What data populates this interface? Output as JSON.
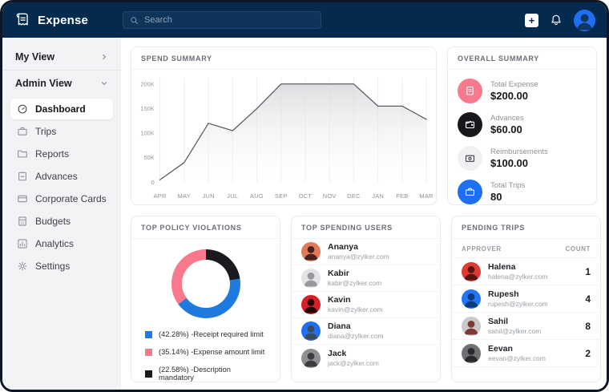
{
  "app": {
    "name": "Expense"
  },
  "topbar": {
    "search_placeholder": "Search"
  },
  "sidebar": {
    "sections": [
      {
        "label": "My View"
      },
      {
        "label": "Admin View"
      }
    ],
    "items": [
      {
        "label": "Dashboard",
        "active": true
      },
      {
        "label": "Trips"
      },
      {
        "label": "Reports"
      },
      {
        "label": "Advances"
      },
      {
        "label": "Corporate Cards"
      },
      {
        "label": "Budgets"
      },
      {
        "label": "Analytics"
      },
      {
        "label": "Settings"
      }
    ]
  },
  "spend_summary": {
    "title": "SPEND SUMMARY"
  },
  "overall_summary": {
    "title": "OVERALL SUMMARY",
    "metrics": [
      {
        "label": "Total Expense",
        "value": "$200.00",
        "icon": "receipt-icon",
        "color": "#f8798c",
        "fg": "#ffffff"
      },
      {
        "label": "Advances",
        "value": "$60.00",
        "icon": "wallet-icon",
        "color": "#17171c",
        "fg": "#ffffff"
      },
      {
        "label": "Reimbursements",
        "value": "$100.00",
        "icon": "cash-card-icon",
        "color": "#f1f1f3",
        "fg": "#3a3a40"
      },
      {
        "label": "Total Trips",
        "value": "80",
        "icon": "briefcase-icon",
        "color": "#1f6ff2",
        "fg": "#ffffff"
      }
    ]
  },
  "violations": {
    "title": "TOP POLICY VIOLATIONS",
    "legend": [
      {
        "text": "(42.28%) -Receipt required limit",
        "color": "#1f7ae0"
      },
      {
        "text": "(35.14%) -Expense amount limit",
        "color": "#f8798c"
      },
      {
        "text": "(22.58%) -Description mandatory",
        "color": "#1b1b1f"
      }
    ]
  },
  "top_spending_users": {
    "title": "TOP SPENDING USERS",
    "users": [
      {
        "name": "Ananya",
        "email": "ananya@zylker.com"
      },
      {
        "name": "Kabir",
        "email": "kabir@zylker.com"
      },
      {
        "name": "Kavin",
        "email": "kavin@zylker.com"
      },
      {
        "name": "Diana",
        "email": "diana@zylker.com"
      },
      {
        "name": "Jack",
        "email": "jack@zylker.com"
      }
    ]
  },
  "pending_trips": {
    "title": "PENDING TRIPS",
    "col_approver": "APPROVER",
    "col_count": "COUNT",
    "rows": [
      {
        "name": "Halena",
        "email": "halena@zylker.com",
        "count": "1"
      },
      {
        "name": "Rupesh",
        "email": "rupesh@zylker.com",
        "count": "4"
      },
      {
        "name": "Sahil",
        "email": "sahil@zylker.com",
        "count": "8"
      },
      {
        "name": "Eevan",
        "email": "eevan@zylker.com",
        "count": "2"
      }
    ]
  },
  "chart_data": [
    {
      "type": "area",
      "title": "SPEND SUMMARY",
      "categories": [
        "APR",
        "MAY",
        "JUN",
        "JUL",
        "AUG",
        "SEP",
        "OCT",
        "NOV",
        "DEC",
        "JAN",
        "FEB",
        "MAR"
      ],
      "values": [
        5000,
        40000,
        120000,
        105000,
        150000,
        200000,
        200000,
        200000,
        200000,
        155000,
        155000,
        128000
      ],
      "xlabel": "",
      "ylabel": "",
      "ylim": [
        0,
        200000
      ],
      "ytick_values": [
        0,
        50000,
        100000,
        150000,
        200000
      ],
      "ytick_labels": [
        "0",
        "50K",
        "100K",
        "150K",
        "200K"
      ],
      "grid": "vertical-only",
      "line_color": "#5a5a62",
      "fill_color": "#d7d7db"
    },
    {
      "type": "donut",
      "title": "TOP POLICY VIOLATIONS",
      "slices": [
        {
          "label": "Receipt required limit",
          "pct": 42.28,
          "color": "#1f7ae0"
        },
        {
          "label": "Expense amount limit",
          "pct": 35.14,
          "color": "#f8798c"
        },
        {
          "label": "Description mandatory",
          "pct": 22.58,
          "color": "#1b1b1f"
        }
      ],
      "draw_order_clockwise_from_top": [
        2,
        0,
        1
      ],
      "legend_position": "bottom"
    }
  ]
}
